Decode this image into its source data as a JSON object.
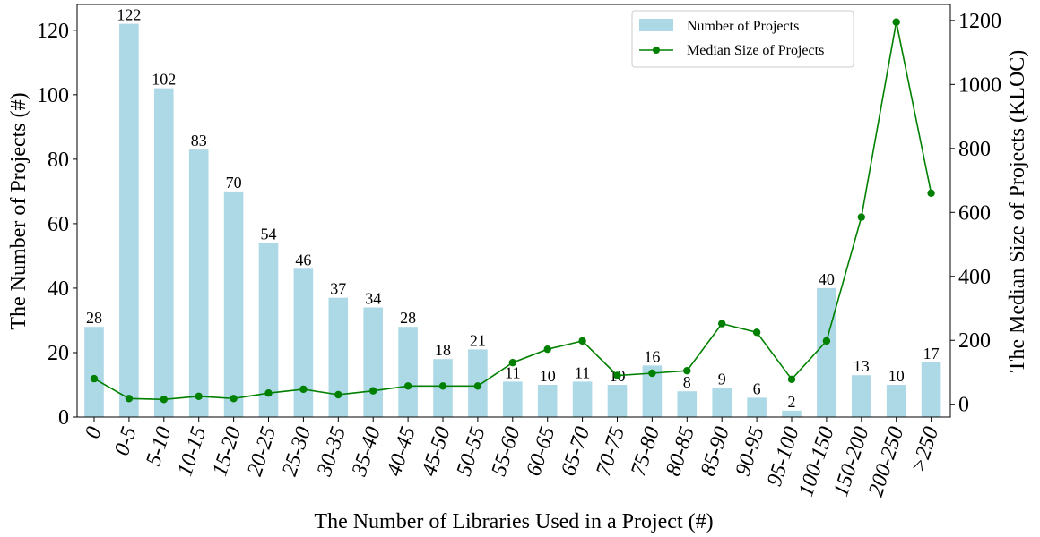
{
  "chart_data": {
    "type": "bar",
    "title": "",
    "xlabel": "The Number of Libraries Used in a Project (#)",
    "ylabel_left": "The Number of Projects (#)",
    "ylabel_right": "The Median Size of Projects (KLOC)",
    "categories": [
      "0",
      "0-5",
      "5-10",
      "10-15",
      "15-20",
      "20-25",
      "25-30",
      "30-35",
      "35-40",
      "40-45",
      "45-50",
      "50-55",
      "55-60",
      "60-65",
      "65-70",
      "70-75",
      "75-80",
      "80-85",
      "85-90",
      "90-95",
      "95-100",
      "100-150",
      "150-200",
      "200-250",
      ">250"
    ],
    "ylim_left": [
      0,
      128
    ],
    "yticks_left": [
      0,
      20,
      40,
      60,
      80,
      100,
      120
    ],
    "ylim_right": [
      -40,
      1250
    ],
    "yticks_right": [
      0,
      200,
      400,
      600,
      800,
      1000,
      1200
    ],
    "grid": false,
    "legend_position": "top-right",
    "series": [
      {
        "name": "Number of Projects",
        "type": "bar",
        "axis": "left",
        "color": "#add8e6",
        "values": [
          28,
          122,
          102,
          83,
          70,
          54,
          46,
          37,
          34,
          28,
          18,
          21,
          11,
          10,
          11,
          10,
          16,
          8,
          9,
          6,
          2,
          40,
          13,
          10,
          17
        ],
        "labels": [
          "28",
          "122",
          "102",
          "83",
          "70",
          "54",
          "46",
          "37",
          "34",
          "28",
          "18",
          "21",
          "11",
          "10",
          "11",
          "10",
          "16",
          "8",
          "9",
          "6",
          "2",
          "40",
          "13",
          "10",
          "17"
        ]
      },
      {
        "name": "Median Size of Projects",
        "type": "line",
        "axis": "right",
        "color": "#008000",
        "values": [
          80,
          18,
          15,
          25,
          18,
          35,
          47,
          30,
          42,
          57,
          57,
          57,
          130,
          172,
          198,
          90,
          97,
          105,
          252,
          225,
          78,
          198,
          585,
          1195,
          660
        ]
      }
    ]
  }
}
